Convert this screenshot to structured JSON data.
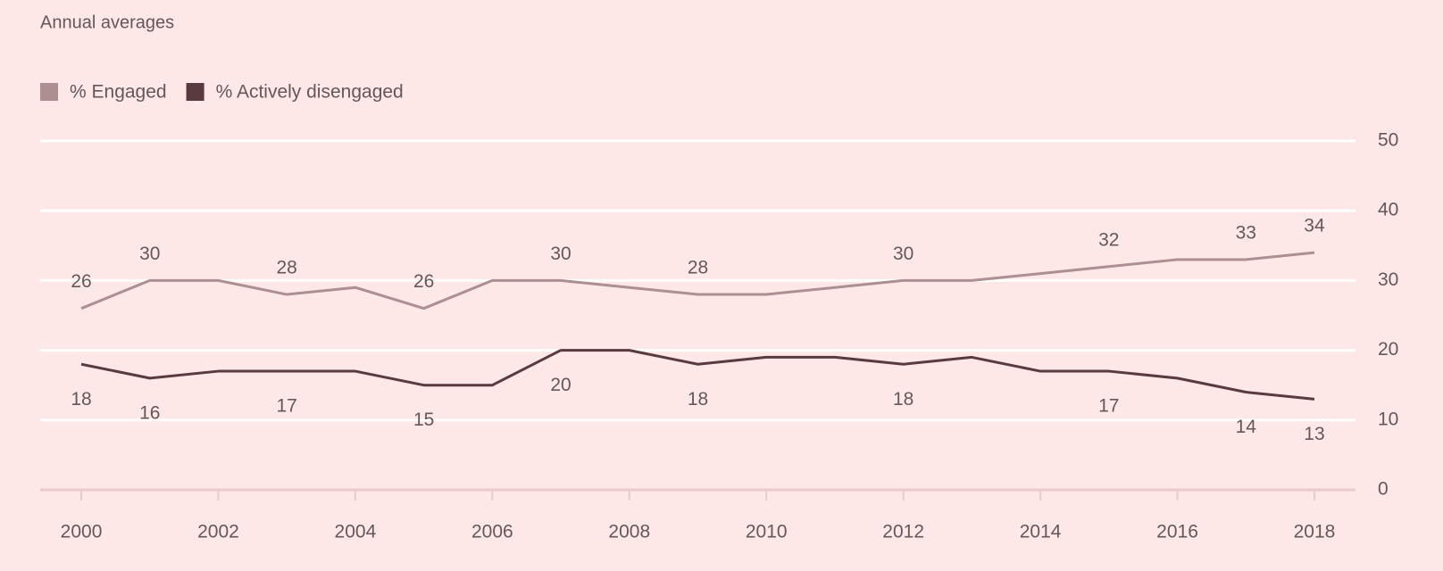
{
  "chart_data": {
    "type": "line",
    "title": "Annual averages",
    "x": [
      2000,
      2001,
      2002,
      2003,
      2004,
      2005,
      2006,
      2007,
      2008,
      2009,
      2010,
      2011,
      2012,
      2013,
      2014,
      2015,
      2016,
      2017,
      2018
    ],
    "series": [
      {
        "name": "% Engaged",
        "color": "#ad8f92",
        "values": [
          26,
          30,
          30,
          28,
          29,
          26,
          30,
          30,
          29,
          28,
          28,
          29,
          30,
          30,
          31,
          32,
          33,
          33,
          34
        ],
        "value_labels": [
          "26",
          "30",
          null,
          "28",
          null,
          "26",
          null,
          "30",
          null,
          "28",
          null,
          null,
          "30",
          null,
          null,
          "32",
          null,
          "33",
          "34"
        ]
      },
      {
        "name": "% Actively disengaged",
        "color": "#583a3f",
        "values": [
          18,
          16,
          17,
          17,
          17,
          15,
          15,
          20,
          20,
          18,
          19,
          19,
          18,
          19,
          17,
          17,
          16,
          14,
          13
        ],
        "value_labels": [
          "18",
          "16",
          null,
          "17",
          null,
          "15",
          null,
          "20",
          null,
          "18",
          null,
          null,
          "18",
          null,
          null,
          "17",
          null,
          "14",
          "13"
        ]
      }
    ],
    "xlim": [
      1999.4,
      2018.6
    ],
    "xticks": [
      2000,
      2002,
      2004,
      2006,
      2008,
      2010,
      2012,
      2014,
      2016,
      2018
    ],
    "ylim": [
      0,
      50
    ],
    "yticks": [
      0,
      10,
      20,
      30,
      40,
      50
    ],
    "grid": true
  }
}
